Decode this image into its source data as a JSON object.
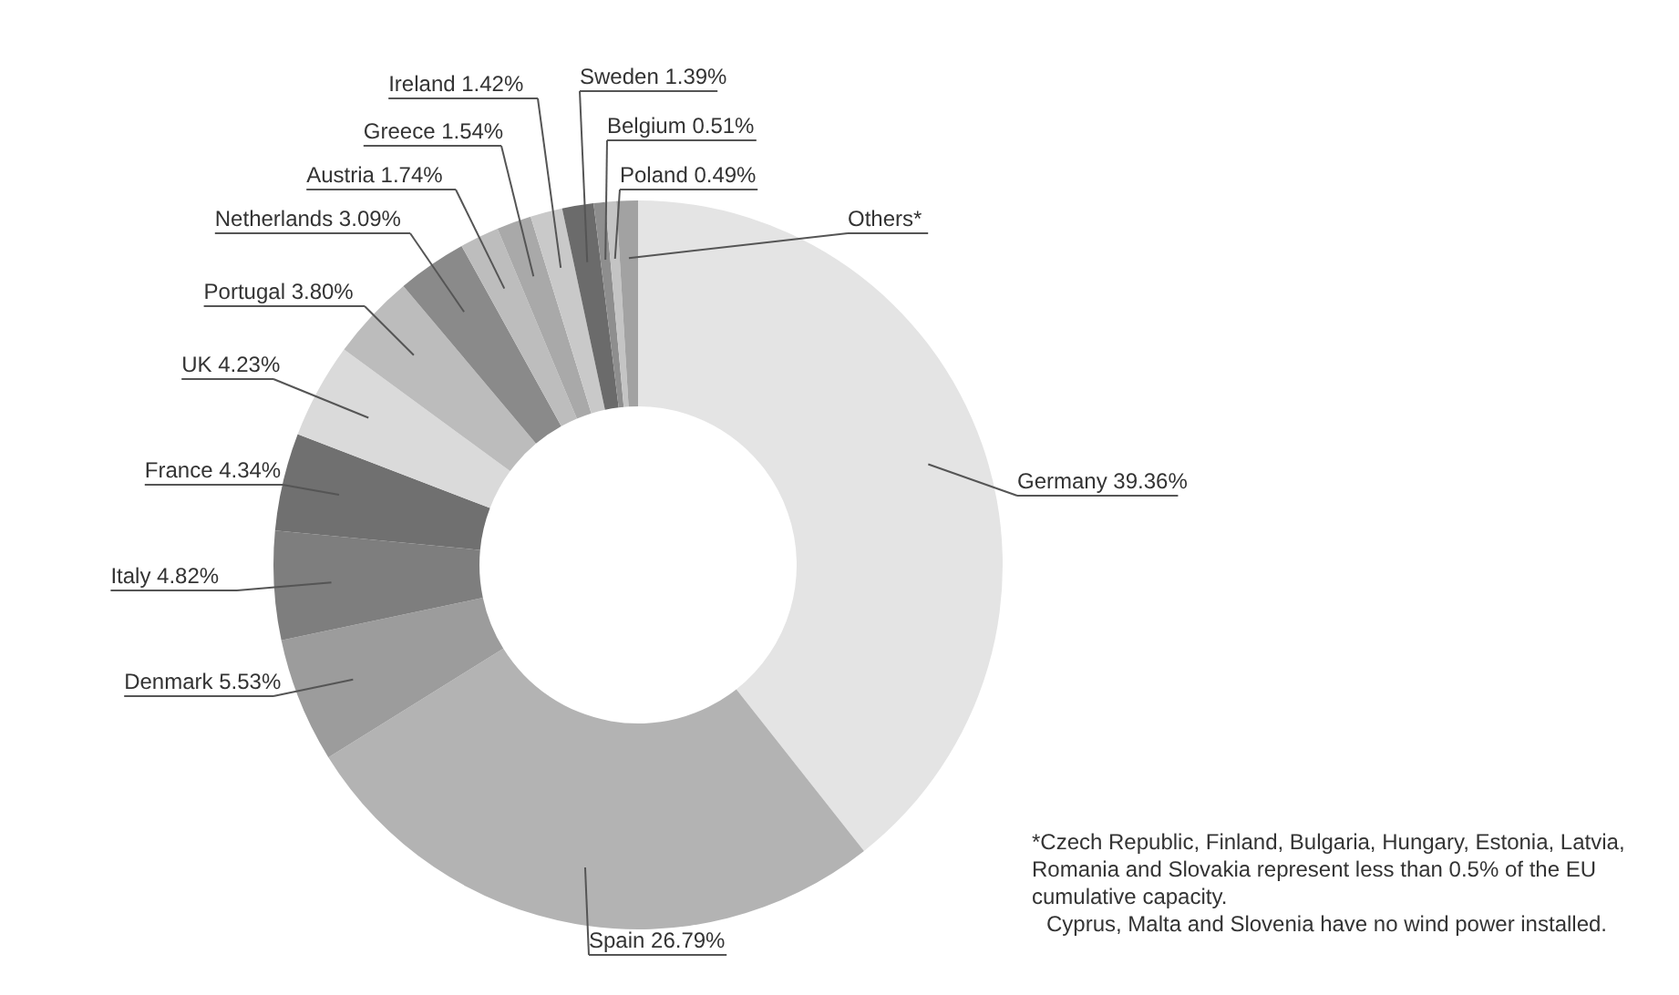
{
  "chart_data": {
    "type": "donut",
    "categories": [
      "Germany",
      "Spain",
      "Denmark",
      "Italy",
      "France",
      "UK",
      "Portugal",
      "Netherlands",
      "Austria",
      "Greece",
      "Ireland",
      "Sweden",
      "Belgium",
      "Poland",
      "Others*"
    ],
    "values": [
      39.36,
      26.79,
      5.53,
      4.82,
      4.34,
      4.23,
      3.8,
      3.09,
      1.74,
      1.54,
      1.42,
      1.39,
      0.51,
      0.49,
      0.95
    ],
    "value_labels": [
      "39.36%",
      "26.79%",
      "5.53%",
      "4.82%",
      "4.34%",
      "4.23%",
      "3.80%",
      "3.09%",
      "1.74%",
      "1.54%",
      "1.42%",
      "1.39%",
      "0.51%",
      "0.49%",
      null
    ],
    "colors": [
      "#e4e4e4",
      "#b3b3b3",
      "#9c9c9c",
      "#7e7e7e",
      "#707070",
      "#dadada",
      "#bcbcbc",
      "#8a8a8a",
      "#bdbdbd",
      "#a9a9a9",
      "#c9c9c9",
      "#6b6b6b",
      "#8e8e8e",
      "#c4c4c4",
      "#a2a2a2"
    ],
    "legend": false,
    "annotations": [
      "*Czech Republic, Finland, Bulgaria, Hungary, Estonia, Latvia, Romania and Slovakia represent less than 0.5% of the EU cumulative capacity.",
      "Cyprus, Malta and Slovenia have no wind power installed."
    ]
  }
}
